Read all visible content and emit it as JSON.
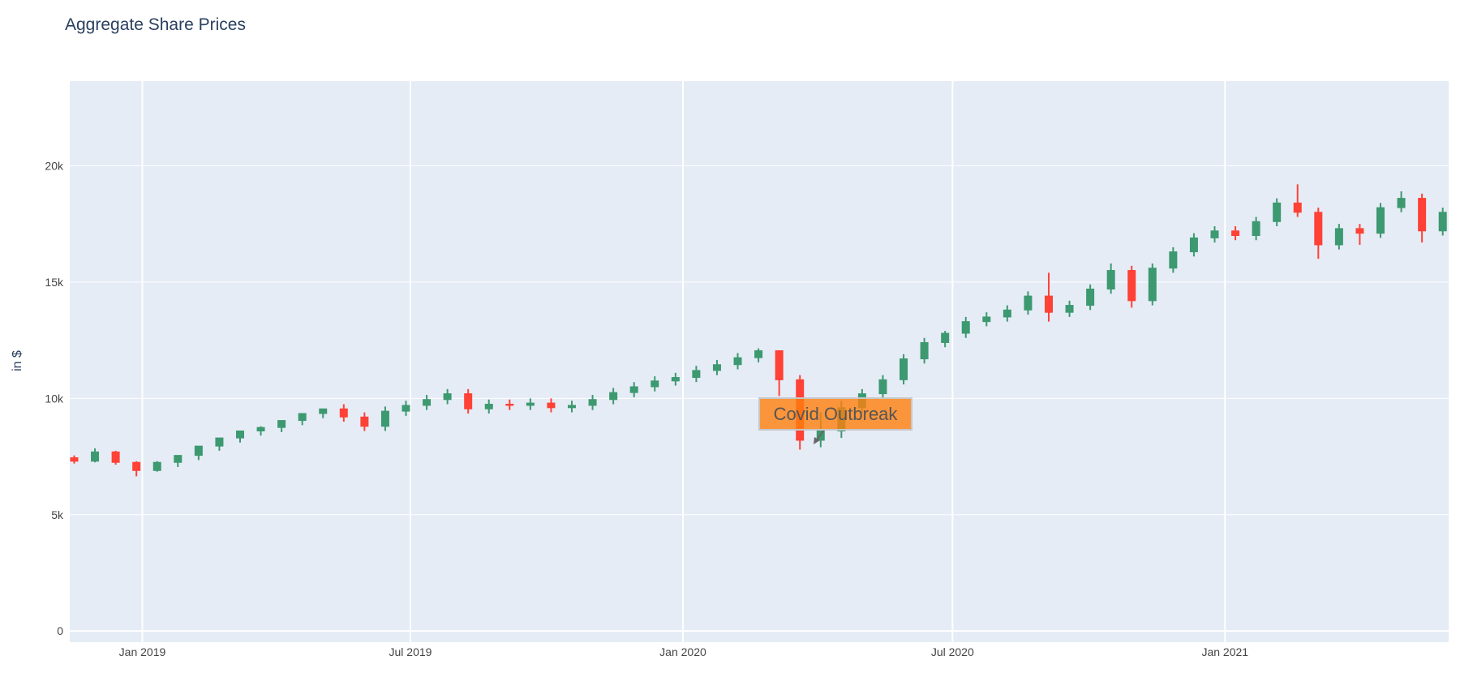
{
  "chart_data": {
    "type": "candlestick",
    "title": "Aggregate Share Prices",
    "y_label": "in $",
    "increasing_color": "#3D9970",
    "decreasing_color": "#FF4136",
    "grid": true,
    "xlim": [
      "2018-11-13",
      "2021-06-01"
    ],
    "xticks": [
      {
        "value": "2019-01-01",
        "label": "Jan 2019"
      },
      {
        "value": "2019-07-01",
        "label": "Jul 2019"
      },
      {
        "value": "2020-01-01",
        "label": "Jan 2020"
      },
      {
        "value": "2020-07-01",
        "label": "Jul 2020"
      },
      {
        "value": "2021-01-01",
        "label": "Jan 2021"
      }
    ],
    "ylim": [
      -480,
      23640
    ],
    "yticks": [
      0,
      {
        "value": 5000,
        "label": "5k"
      },
      {
        "value": 10000,
        "label": "10k"
      },
      {
        "value": 15000,
        "label": "15k"
      },
      {
        "value": 20000,
        "label": "20k"
      }
    ],
    "annotation": {
      "text": "Covid Outbreak"
    },
    "x": [
      "2018-11-16",
      "2018-11-30",
      "2018-12-14",
      "2018-12-28",
      "2019-01-11",
      "2019-01-25",
      "2019-02-08",
      "2019-02-22",
      "2019-03-08",
      "2019-03-22",
      "2019-04-05",
      "2019-04-19",
      "2019-05-03",
      "2019-05-17",
      "2019-05-31",
      "2019-06-14",
      "2019-06-28",
      "2019-07-12",
      "2019-07-26",
      "2019-08-09",
      "2019-08-23",
      "2019-09-06",
      "2019-09-20",
      "2019-10-04",
      "2019-10-18",
      "2019-11-01",
      "2019-11-15",
      "2019-11-29",
      "2019-12-13",
      "2019-12-27",
      "2020-01-10",
      "2020-01-24",
      "2020-02-07",
      "2020-02-21",
      "2020-03-06",
      "2020-03-20",
      "2020-04-03",
      "2020-04-17",
      "2020-05-01",
      "2020-05-15",
      "2020-05-29",
      "2020-06-12",
      "2020-06-26",
      "2020-07-10",
      "2020-07-24",
      "2020-08-07",
      "2020-08-21",
      "2020-09-04",
      "2020-09-18",
      "2020-10-02",
      "2020-10-16",
      "2020-10-30",
      "2020-11-13",
      "2020-11-27",
      "2020-12-11",
      "2020-12-25",
      "2021-01-08",
      "2021-01-22",
      "2021-02-05",
      "2021-02-19",
      "2021-03-05",
      "2021-03-19",
      "2021-04-02",
      "2021-04-16",
      "2021-04-30",
      "2021-05-14",
      "2021-05-28"
    ],
    "open": [
      7450,
      7300,
      7700,
      7250,
      6900,
      7250,
      7550,
      7950,
      8300,
      8600,
      8750,
      9050,
      9350,
      9550,
      9200,
      8800,
      9450,
      9700,
      9950,
      10200,
      9550,
      9750,
      9700,
      9800,
      9600,
      9700,
      9950,
      10250,
      10500,
      10750,
      10900,
      11200,
      11450,
      11750,
      12050,
      10800,
      8200,
      8600,
      9600,
      10200,
      10800,
      11700,
      12400,
      12800,
      13300,
      13500,
      13800,
      14400,
      13700,
      14000,
      14700,
      15500,
      14200,
      15600,
      16300,
      16900,
      17200,
      17000,
      17600,
      18400,
      18000,
      16600,
      17300,
      17100,
      18200,
      18600,
      17200
    ],
    "high": [
      7550,
      7850,
      7750,
      7300,
      7300,
      7450,
      7750,
      8150,
      8500,
      8800,
      8950,
      9250,
      9550,
      9750,
      9400,
      9650,
      9900,
      10150,
      10400,
      10400,
      9950,
      9950,
      10000,
      10000,
      9900,
      10150,
      10450,
      10700,
      10950,
      11100,
      11400,
      11650,
      11950,
      12150,
      12050,
      11000,
      9400,
      9900,
      10400,
      11000,
      11900,
      12600,
      12900,
      13500,
      13700,
      14000,
      14600,
      15400,
      14200,
      14900,
      15800,
      15700,
      15800,
      16500,
      17100,
      17400,
      17400,
      17800,
      18600,
      19200,
      18200,
      17500,
      17500,
      18400,
      18900,
      18800,
      18200
    ],
    "low": [
      7200,
      7250,
      7150,
      6650,
      6850,
      7050,
      7350,
      7750,
      8100,
      8400,
      8550,
      8850,
      9150,
      9000,
      8600,
      8600,
      9250,
      9500,
      9750,
      9350,
      9350,
      9500,
      9500,
      9400,
      9400,
      9500,
      9750,
      10050,
      10300,
      10550,
      10700,
      11000,
      11250,
      11550,
      10100,
      7800,
      7900,
      8300,
      9400,
      10000,
      10600,
      11500,
      12200,
      12600,
      13100,
      13300,
      13600,
      13300,
      13500,
      13800,
      14500,
      13900,
      14000,
      15400,
      16100,
      16700,
      16800,
      16800,
      17400,
      17800,
      16000,
      16400,
      16600,
      16900,
      18000,
      16700,
      17000
    ],
    "close": [
      7300,
      7700,
      7250,
      6900,
      7250,
      7550,
      7950,
      8300,
      8600,
      8750,
      9050,
      9350,
      9550,
      9200,
      8800,
      9450,
      9700,
      9950,
      10200,
      9550,
      9750,
      9700,
      9800,
      9600,
      9700,
      9950,
      10250,
      10500,
      10750,
      10900,
      11200,
      11450,
      11750,
      12050,
      10800,
      8200,
      8600,
      9600,
      10200,
      10800,
      11700,
      12400,
      12800,
      13300,
      13500,
      13800,
      14400,
      13700,
      14000,
      14700,
      15500,
      14200,
      15600,
      16300,
      16900,
      17200,
      17000,
      17600,
      18400,
      18000,
      16600,
      17300,
      17100,
      18200,
      18600,
      17200,
      18000
    ]
  }
}
